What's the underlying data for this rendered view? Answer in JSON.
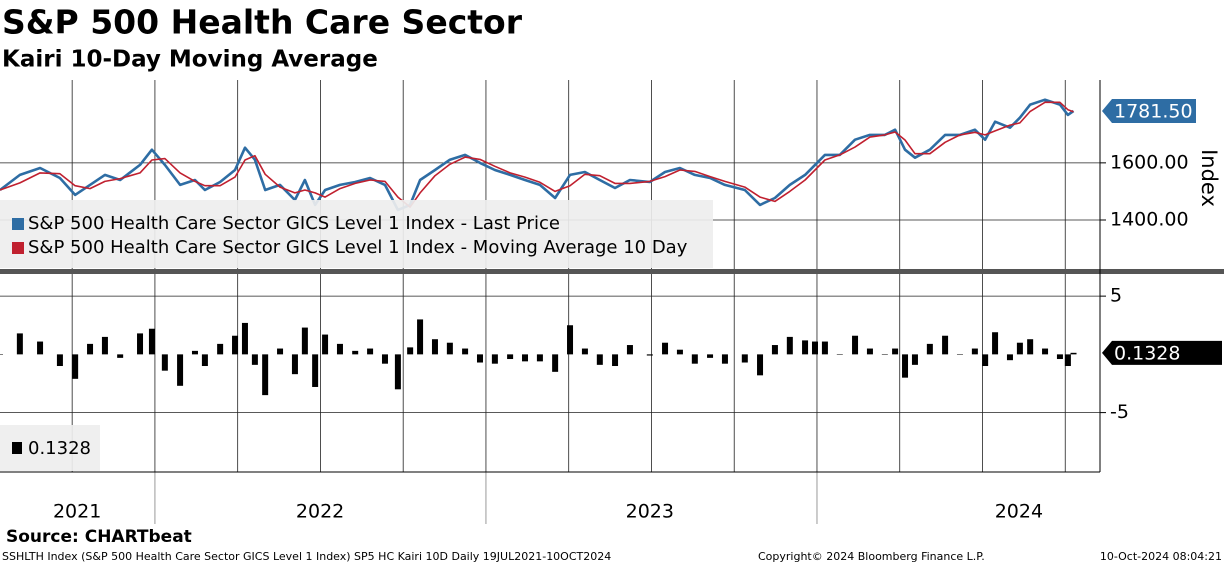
{
  "chart_data": [
    {
      "type": "line",
      "title": "S&P 500 Health Care Sector",
      "subtitle": "Kairi 10-Day Moving Average",
      "y_label": "Index",
      "x": [
        2021.532,
        2021.592,
        2021.653,
        2021.713,
        2021.759,
        2021.804,
        2021.849,
        2021.895,
        2021.955,
        2021.991,
        2022.03,
        2022.076,
        2022.121,
        2022.151,
        2022.197,
        2022.242,
        2022.272,
        2022.302,
        2022.333,
        2022.378,
        2022.423,
        2022.453,
        2022.484,
        2022.514,
        2022.559,
        2022.605,
        2022.65,
        2022.695,
        2022.734,
        2022.771,
        2022.801,
        2022.846,
        2022.891,
        2022.937,
        2022.982,
        2023.027,
        2023.073,
        2023.118,
        2023.163,
        2023.209,
        2023.254,
        2023.299,
        2023.344,
        2023.39,
        2023.435,
        2023.495,
        2023.541,
        2023.586,
        2023.631,
        2023.677,
        2023.722,
        2023.782,
        2023.828,
        2023.873,
        2023.918,
        2023.964,
        2023.994,
        2024.024,
        2024.069,
        2024.115,
        2024.16,
        2024.205,
        2024.236,
        2024.266,
        2024.296,
        2024.341,
        2024.387,
        2024.432,
        2024.477,
        2024.508,
        2024.538,
        2024.583,
        2024.613,
        2024.644,
        2024.689,
        2024.734,
        2024.758,
        2024.775
      ],
      "series": [
        {
          "name": "S&P 500 Health Care Sector GICS Level 1 Index - Last Price",
          "color": "#2e6da4",
          "last_label": "1781.50",
          "values": [
            1505,
            1558,
            1582,
            1547,
            1488,
            1523,
            1558,
            1540,
            1593,
            1646,
            1593,
            1523,
            1540,
            1505,
            1533,
            1575,
            1653,
            1611,
            1505,
            1523,
            1470,
            1540,
            1453,
            1505,
            1523,
            1533,
            1547,
            1523,
            1435,
            1453,
            1540,
            1575,
            1611,
            1628,
            1600,
            1575,
            1558,
            1540,
            1523,
            1477,
            1558,
            1568,
            1540,
            1512,
            1540,
            1533,
            1568,
            1582,
            1558,
            1547,
            1523,
            1505,
            1453,
            1477,
            1523,
            1558,
            1593,
            1628,
            1628,
            1681,
            1698,
            1698,
            1716,
            1646,
            1618,
            1646,
            1698,
            1698,
            1716,
            1681,
            1744,
            1723,
            1758,
            1804,
            1821,
            1804,
            1768,
            1781.5
          ]
        },
        {
          "name": "S&P 500 Health Care Sector GICS Level 1 Index - Moving Average 10 Day",
          "color": "#c0202f",
          "values": [
            1505,
            1530,
            1565,
            1562,
            1520,
            1510,
            1535,
            1545,
            1565,
            1610,
            1615,
            1565,
            1535,
            1520,
            1520,
            1550,
            1610,
            1625,
            1560,
            1515,
            1495,
            1505,
            1495,
            1480,
            1510,
            1528,
            1540,
            1535,
            1480,
            1445,
            1495,
            1555,
            1595,
            1620,
            1612,
            1588,
            1565,
            1550,
            1532,
            1500,
            1520,
            1560,
            1555,
            1528,
            1528,
            1535,
            1552,
            1575,
            1570,
            1552,
            1535,
            1515,
            1480,
            1465,
            1500,
            1540,
            1575,
            1610,
            1628,
            1655,
            1690,
            1698,
            1708,
            1680,
            1632,
            1632,
            1672,
            1698,
            1707,
            1698,
            1712,
            1732,
            1740,
            1780,
            1812,
            1812,
            1786,
            1779
          ]
        }
      ],
      "xlim": [
        2021.532,
        2024.855
      ],
      "ylim": [
        1225,
        1890
      ],
      "yticks": [
        {
          "value": 1400,
          "label": "1400.00"
        },
        {
          "value": 1600,
          "label": "1600.00"
        }
      ],
      "xticks": [
        {
          "value": 2021.765,
          "label": "2021"
        },
        {
          "value": 2022.499,
          "label": "2022"
        },
        {
          "value": 2023.495,
          "label": "2023"
        },
        {
          "value": 2024.61,
          "label": "2024"
        }
      ],
      "xgrid": [
        2021.75,
        2022,
        2022.25,
        2022.5,
        2022.75,
        2023,
        2023.25,
        2023.5,
        2023.75,
        2024,
        2024.25,
        2024.5,
        2024.75
      ],
      "grid": true
    },
    {
      "type": "bar",
      "x": [
        2021.532,
        2021.592,
        2021.653,
        2021.713,
        2021.759,
        2021.804,
        2021.849,
        2021.895,
        2021.955,
        2021.991,
        2022.03,
        2022.076,
        2022.121,
        2022.151,
        2022.197,
        2022.242,
        2022.272,
        2022.302,
        2022.333,
        2022.378,
        2022.423,
        2022.453,
        2022.484,
        2022.514,
        2022.559,
        2022.605,
        2022.65,
        2022.695,
        2022.734,
        2022.771,
        2022.801,
        2022.846,
        2022.891,
        2022.937,
        2022.982,
        2023.027,
        2023.073,
        2023.118,
        2023.163,
        2023.209,
        2023.254,
        2023.299,
        2023.344,
        2023.39,
        2023.435,
        2023.495,
        2023.541,
        2023.586,
        2023.631,
        2023.677,
        2023.722,
        2023.782,
        2023.828,
        2023.873,
        2023.918,
        2023.964,
        2023.994,
        2024.024,
        2024.069,
        2024.115,
        2024.16,
        2024.205,
        2024.236,
        2024.266,
        2024.296,
        2024.341,
        2024.387,
        2024.432,
        2024.477,
        2024.508,
        2024.538,
        2024.583,
        2024.613,
        2024.644,
        2024.689,
        2024.734,
        2024.758,
        2024.775
      ],
      "series": [
        {
          "name": "0.1328",
          "color": "#000000",
          "last_label": "0.1328",
          "values": [
            0,
            1.8,
            1.1,
            -1.0,
            -2.1,
            0.9,
            1.5,
            -0.3,
            1.8,
            2.2,
            -1.4,
            -2.7,
            0.3,
            -1.0,
            0.9,
            1.6,
            2.7,
            -0.9,
            -3.5,
            0.5,
            -1.7,
            2.3,
            -2.8,
            1.7,
            0.9,
            0.3,
            0.5,
            -0.8,
            -3.0,
            0.6,
            3.0,
            1.3,
            1.0,
            0.5,
            -0.7,
            -0.8,
            -0.4,
            -0.6,
            -0.6,
            -1.5,
            2.5,
            0.5,
            -0.9,
            -1.0,
            0.8,
            -0.1,
            1.0,
            0.4,
            -0.8,
            -0.3,
            -0.8,
            -0.7,
            -1.8,
            0.8,
            1.5,
            1.2,
            1.1,
            1.1,
            0.0,
            1.6,
            0.5,
            0.0,
            0.5,
            -2.0,
            -0.9,
            0.9,
            1.6,
            0.0,
            0.5,
            -1.0,
            1.9,
            -0.5,
            1.0,
            1.3,
            0.5,
            -0.4,
            -1.0,
            0.1328
          ]
        }
      ],
      "xlim": [
        2021.532,
        2024.855
      ],
      "ylim": [
        -10.1,
        6.9
      ],
      "yticks": [
        -5,
        5
      ],
      "xgrid": [
        2021.75,
        2022,
        2022.25,
        2022.5,
        2022.75,
        2023,
        2023.25,
        2023.5,
        2023.75,
        2024,
        2024.25,
        2024.5,
        2024.75
      ],
      "grid": true
    }
  ],
  "source": "Source: CHARTbeat",
  "footer_left": "SSHLTH Index (S&P 500 Health Care Sector GICS Level 1 Index) SP5 HC Kairi 10D  Daily 19JUL2021-10OCT2024",
  "copyright": "Copyright© 2024 Bloomberg Finance L.P.",
  "timestamp": "10-Oct-2024 08:04:21"
}
